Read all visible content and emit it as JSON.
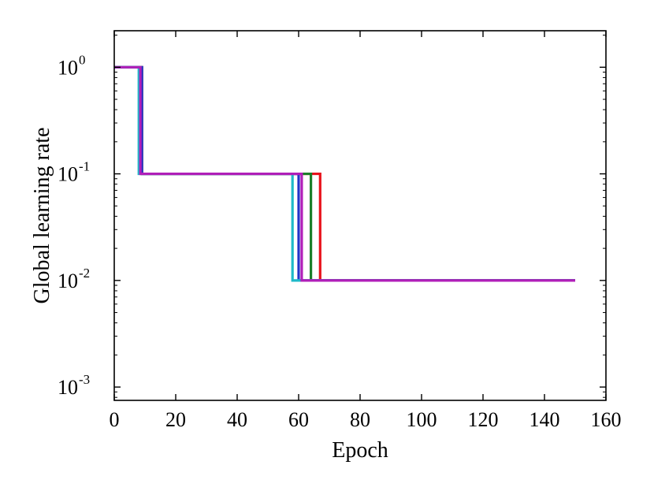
{
  "chart_data": {
    "type": "line",
    "title": "",
    "xlabel": "Epoch",
    "ylabel": "Global learning rate",
    "xlim": [
      0,
      160
    ],
    "ylim": [
      0.00075,
      2.2
    ],
    "yscale": "log",
    "grid": false,
    "x_ticks": [
      {
        "value": 0,
        "label": "0"
      },
      {
        "value": 20,
        "label": "20"
      },
      {
        "value": 40,
        "label": "40"
      },
      {
        "value": 60,
        "label": "60"
      },
      {
        "value": 80,
        "label": "80"
      },
      {
        "value": 100,
        "label": "100"
      },
      {
        "value": 120,
        "label": "120"
      },
      {
        "value": 140,
        "label": "140"
      },
      {
        "value": 160,
        "label": "160"
      }
    ],
    "y_ticks": [
      {
        "value": 1,
        "base": "10",
        "exp": "0"
      },
      {
        "value": 0.1,
        "base": "10",
        "exp": "-1"
      },
      {
        "value": 0.01,
        "base": "10",
        "exp": "-2"
      },
      {
        "value": 0.001,
        "base": "10",
        "exp": "-3"
      }
    ],
    "series": [
      {
        "color": "#e8131c",
        "x": [
          0,
          9,
          9,
          67,
          67,
          150
        ],
        "y": [
          1,
          1,
          0.1,
          0.1,
          0.01,
          0.01
        ]
      },
      {
        "color": "#1b7f2a",
        "x": [
          0,
          9,
          9,
          64,
          64,
          150
        ],
        "y": [
          1,
          1,
          0.1,
          0.1,
          0.01,
          0.01
        ]
      },
      {
        "color": "#2432c8",
        "x": [
          0,
          9,
          9,
          60,
          60,
          150
        ],
        "y": [
          1,
          1,
          0.1,
          0.1,
          0.01,
          0.01
        ]
      },
      {
        "color": "#1fb9c9",
        "x": [
          0,
          8,
          8,
          58,
          58,
          150
        ],
        "y": [
          1,
          1,
          0.1,
          0.1,
          0.01,
          0.01
        ]
      },
      {
        "color": "#b01fb8",
        "x": [
          0,
          8.5,
          8.5,
          61,
          61,
          150
        ],
        "y": [
          1,
          1,
          0.1,
          0.1,
          0.01,
          0.01
        ]
      }
    ]
  }
}
